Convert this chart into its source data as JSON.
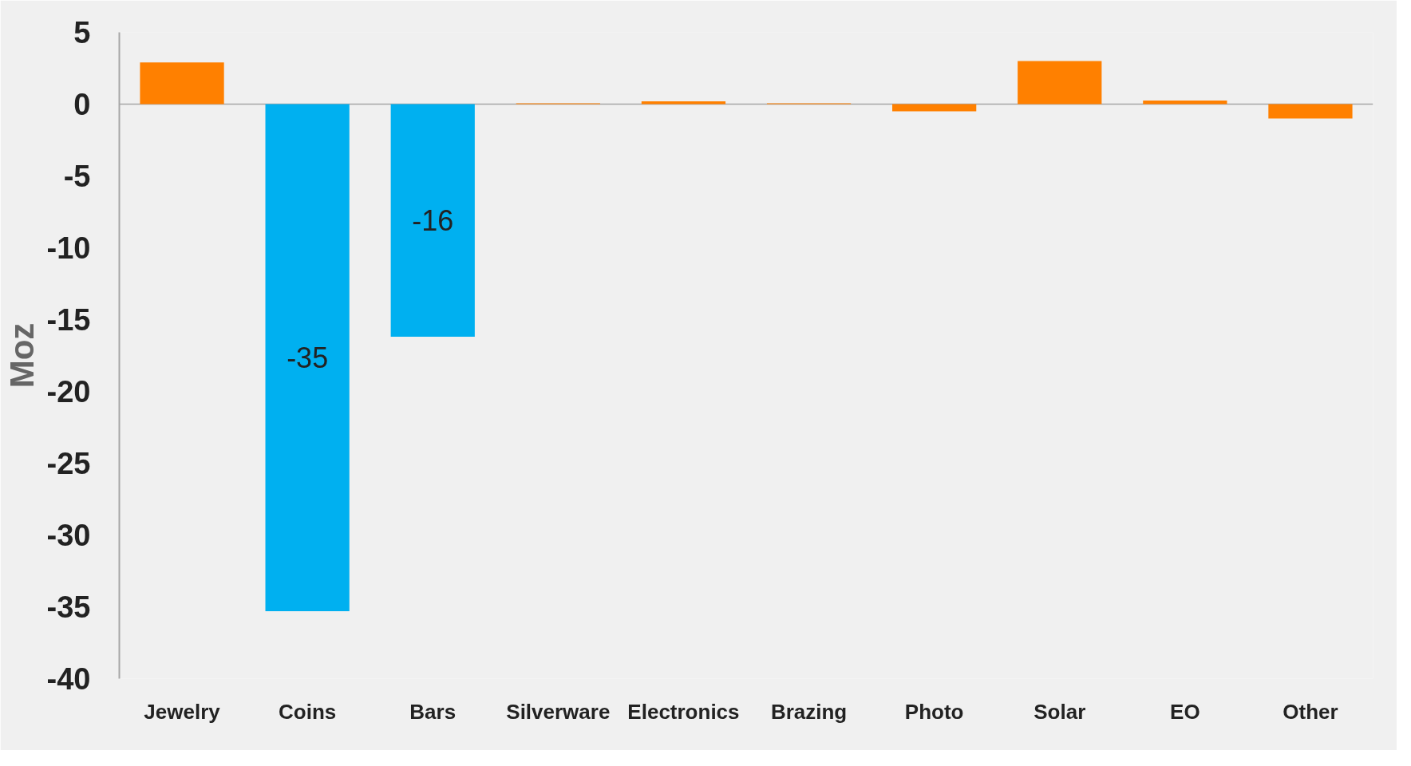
{
  "chart_data": {
    "type": "bar",
    "ylabel": "Moz",
    "categories": [
      "Jewelry",
      "Coins",
      "Bars",
      "Silverware",
      "Electronics",
      "Brazing",
      "Photo",
      "Solar",
      "EO",
      "Other"
    ],
    "values": [
      2.9,
      -35.3,
      -16.2,
      0.05,
      0.2,
      0.05,
      -0.5,
      3.0,
      0.25,
      -1.0
    ],
    "colors": [
      "#ff8000",
      "#00b0f0",
      "#00b0f0",
      "#ff8000",
      "#ff8000",
      "#ff8000",
      "#ff8000",
      "#ff8000",
      "#ff8000",
      "#ff8000"
    ],
    "value_labels": [
      null,
      "-35",
      "-16",
      null,
      null,
      null,
      null,
      null,
      null,
      null
    ],
    "ylim": [
      -40,
      5
    ],
    "yticks": [
      5,
      0,
      -5,
      -10,
      -15,
      -20,
      -25,
      -30,
      -35,
      -40
    ]
  }
}
